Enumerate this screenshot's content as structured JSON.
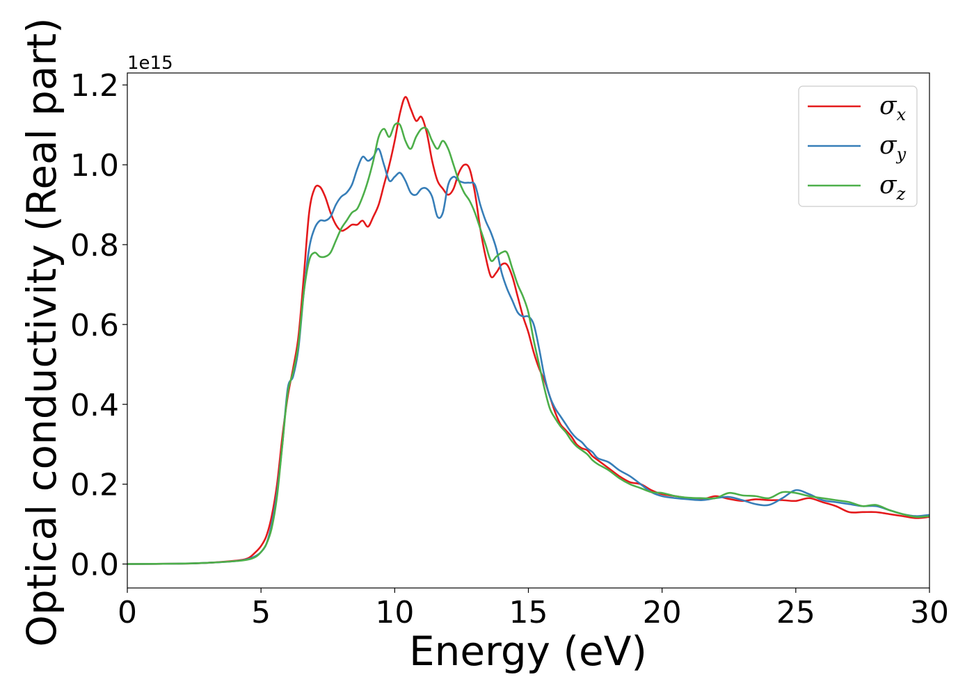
{
  "chart_data": {
    "type": "line",
    "xlabel": "Energy (eV)",
    "ylabel": "Optical conductivity (Real part)",
    "y_offset_label": "1e15",
    "xlim": [
      0,
      30
    ],
    "ylim": [
      -0.06,
      1.23
    ],
    "x_ticks": [
      0,
      5,
      10,
      15,
      20,
      25,
      30
    ],
    "x_tick_labels": [
      "0",
      "5",
      "10",
      "15",
      "20",
      "25",
      "30"
    ],
    "y_ticks": [
      0.0,
      0.2,
      0.4,
      0.6,
      0.8,
      1.0,
      1.2
    ],
    "y_tick_labels": [
      "0.0",
      "0.2",
      "0.4",
      "0.6",
      "0.8",
      "1.0",
      "1.2"
    ],
    "grid": false,
    "legend_position": "top-right",
    "series": [
      {
        "name": "σ",
        "subscript": "x",
        "color": "#e41a1c",
        "points": [
          [
            0,
            0
          ],
          [
            2,
            0.001
          ],
          [
            3,
            0.003
          ],
          [
            4,
            0.008
          ],
          [
            4.5,
            0.014
          ],
          [
            4.8,
            0.03
          ],
          [
            5,
            0.045
          ],
          [
            5.2,
            0.07
          ],
          [
            5.4,
            0.12
          ],
          [
            5.6,
            0.2
          ],
          [
            5.8,
            0.32
          ],
          [
            6,
            0.42
          ],
          [
            6.2,
            0.49
          ],
          [
            6.4,
            0.57
          ],
          [
            6.6,
            0.72
          ],
          [
            6.8,
            0.88
          ],
          [
            7,
            0.94
          ],
          [
            7.2,
            0.945
          ],
          [
            7.4,
            0.92
          ],
          [
            7.6,
            0.88
          ],
          [
            7.8,
            0.85
          ],
          [
            8,
            0.835
          ],
          [
            8.2,
            0.84
          ],
          [
            8.4,
            0.85
          ],
          [
            8.6,
            0.85
          ],
          [
            8.8,
            0.86
          ],
          [
            9,
            0.845
          ],
          [
            9.2,
            0.87
          ],
          [
            9.4,
            0.9
          ],
          [
            9.6,
            0.95
          ],
          [
            9.8,
            1.0
          ],
          [
            10,
            1.06
          ],
          [
            10.2,
            1.13
          ],
          [
            10.4,
            1.17
          ],
          [
            10.6,
            1.14
          ],
          [
            10.8,
            1.11
          ],
          [
            11,
            1.12
          ],
          [
            11.2,
            1.08
          ],
          [
            11.4,
            1.01
          ],
          [
            11.6,
            0.96
          ],
          [
            11.8,
            0.94
          ],
          [
            12,
            0.925
          ],
          [
            12.2,
            0.94
          ],
          [
            12.4,
            0.98
          ],
          [
            12.6,
            1.0
          ],
          [
            12.8,
            0.99
          ],
          [
            13,
            0.93
          ],
          [
            13.2,
            0.84
          ],
          [
            13.4,
            0.77
          ],
          [
            13.6,
            0.72
          ],
          [
            13.8,
            0.73
          ],
          [
            14,
            0.75
          ],
          [
            14.2,
            0.75
          ],
          [
            14.4,
            0.72
          ],
          [
            14.6,
            0.67
          ],
          [
            14.8,
            0.62
          ],
          [
            15,
            0.58
          ],
          [
            15.2,
            0.53
          ],
          [
            15.4,
            0.49
          ],
          [
            15.6,
            0.46
          ],
          [
            15.8,
            0.42
          ],
          [
            16,
            0.38
          ],
          [
            16.2,
            0.35
          ],
          [
            16.4,
            0.335
          ],
          [
            16.6,
            0.32
          ],
          [
            16.8,
            0.3
          ],
          [
            17,
            0.29
          ],
          [
            17.2,
            0.285
          ],
          [
            17.4,
            0.27
          ],
          [
            17.6,
            0.26
          ],
          [
            18,
            0.24
          ],
          [
            18.4,
            0.22
          ],
          [
            18.8,
            0.205
          ],
          [
            19.2,
            0.2
          ],
          [
            19.6,
            0.185
          ],
          [
            20,
            0.175
          ],
          [
            20.5,
            0.17
          ],
          [
            21,
            0.165
          ],
          [
            21.5,
            0.162
          ],
          [
            22,
            0.17
          ],
          [
            22.5,
            0.163
          ],
          [
            23,
            0.158
          ],
          [
            23.5,
            0.162
          ],
          [
            24,
            0.16
          ],
          [
            24.5,
            0.16
          ],
          [
            25,
            0.158
          ],
          [
            25.5,
            0.165
          ],
          [
            26,
            0.155
          ],
          [
            26.5,
            0.145
          ],
          [
            27,
            0.13
          ],
          [
            27.5,
            0.13
          ],
          [
            28,
            0.13
          ],
          [
            28.5,
            0.125
          ],
          [
            29,
            0.12
          ],
          [
            29.5,
            0.115
          ],
          [
            30,
            0.118
          ]
        ]
      },
      {
        "name": "σ",
        "subscript": "y",
        "color": "#377eb8",
        "points": [
          [
            0,
            0
          ],
          [
            2,
            0.001
          ],
          [
            3,
            0.003
          ],
          [
            4,
            0.007
          ],
          [
            4.5,
            0.012
          ],
          [
            4.8,
            0.02
          ],
          [
            5,
            0.03
          ],
          [
            5.2,
            0.05
          ],
          [
            5.4,
            0.1
          ],
          [
            5.6,
            0.18
          ],
          [
            5.8,
            0.3
          ],
          [
            6,
            0.44
          ],
          [
            6.2,
            0.47
          ],
          [
            6.4,
            0.54
          ],
          [
            6.6,
            0.68
          ],
          [
            6.8,
            0.79
          ],
          [
            7,
            0.84
          ],
          [
            7.2,
            0.86
          ],
          [
            7.4,
            0.86
          ],
          [
            7.6,
            0.87
          ],
          [
            7.8,
            0.9
          ],
          [
            8,
            0.92
          ],
          [
            8.2,
            0.93
          ],
          [
            8.4,
            0.95
          ],
          [
            8.6,
            0.99
          ],
          [
            8.8,
            1.02
          ],
          [
            9,
            1.01
          ],
          [
            9.2,
            1.02
          ],
          [
            9.4,
            1.04
          ],
          [
            9.6,
            1.0
          ],
          [
            9.8,
            0.96
          ],
          [
            10,
            0.97
          ],
          [
            10.2,
            0.98
          ],
          [
            10.4,
            0.96
          ],
          [
            10.6,
            0.93
          ],
          [
            10.8,
            0.925
          ],
          [
            11,
            0.94
          ],
          [
            11.2,
            0.94
          ],
          [
            11.4,
            0.92
          ],
          [
            11.6,
            0.87
          ],
          [
            11.8,
            0.88
          ],
          [
            12,
            0.95
          ],
          [
            12.2,
            0.97
          ],
          [
            12.4,
            0.96
          ],
          [
            12.6,
            0.955
          ],
          [
            12.8,
            0.955
          ],
          [
            13,
            0.95
          ],
          [
            13.2,
            0.9
          ],
          [
            13.4,
            0.86
          ],
          [
            13.6,
            0.83
          ],
          [
            13.8,
            0.79
          ],
          [
            14,
            0.73
          ],
          [
            14.2,
            0.69
          ],
          [
            14.4,
            0.66
          ],
          [
            14.6,
            0.63
          ],
          [
            14.8,
            0.62
          ],
          [
            15,
            0.62
          ],
          [
            15.2,
            0.6
          ],
          [
            15.4,
            0.54
          ],
          [
            15.6,
            0.47
          ],
          [
            15.8,
            0.42
          ],
          [
            16,
            0.39
          ],
          [
            16.2,
            0.37
          ],
          [
            16.4,
            0.35
          ],
          [
            16.6,
            0.33
          ],
          [
            16.8,
            0.315
          ],
          [
            17,
            0.305
          ],
          [
            17.2,
            0.29
          ],
          [
            17.4,
            0.28
          ],
          [
            17.6,
            0.265
          ],
          [
            18,
            0.255
          ],
          [
            18.4,
            0.235
          ],
          [
            18.8,
            0.22
          ],
          [
            19.2,
            0.2
          ],
          [
            19.6,
            0.18
          ],
          [
            20,
            0.17
          ],
          [
            20.5,
            0.165
          ],
          [
            21,
            0.162
          ],
          [
            21.5,
            0.16
          ],
          [
            22,
            0.165
          ],
          [
            22.5,
            0.168
          ],
          [
            23,
            0.16
          ],
          [
            23.5,
            0.15
          ],
          [
            24,
            0.148
          ],
          [
            24.5,
            0.165
          ],
          [
            25,
            0.185
          ],
          [
            25.5,
            0.175
          ],
          [
            26,
            0.16
          ],
          [
            26.5,
            0.155
          ],
          [
            27,
            0.15
          ],
          [
            27.5,
            0.145
          ],
          [
            28,
            0.145
          ],
          [
            28.5,
            0.135
          ],
          [
            29,
            0.125
          ],
          [
            29.5,
            0.12
          ],
          [
            30,
            0.123
          ]
        ]
      },
      {
        "name": "σ",
        "subscript": "z",
        "color": "#4daf4a",
        "points": [
          [
            0,
            0
          ],
          [
            2,
            0.001
          ],
          [
            3,
            0.003
          ],
          [
            4,
            0.007
          ],
          [
            4.5,
            0.011
          ],
          [
            4.8,
            0.018
          ],
          [
            5,
            0.03
          ],
          [
            5.2,
            0.05
          ],
          [
            5.4,
            0.09
          ],
          [
            5.6,
            0.17
          ],
          [
            5.8,
            0.3
          ],
          [
            6,
            0.43
          ],
          [
            6.2,
            0.48
          ],
          [
            6.4,
            0.55
          ],
          [
            6.6,
            0.68
          ],
          [
            6.8,
            0.76
          ],
          [
            7,
            0.78
          ],
          [
            7.2,
            0.77
          ],
          [
            7.4,
            0.77
          ],
          [
            7.6,
            0.78
          ],
          [
            7.8,
            0.81
          ],
          [
            8,
            0.84
          ],
          [
            8.2,
            0.86
          ],
          [
            8.4,
            0.88
          ],
          [
            8.6,
            0.89
          ],
          [
            8.8,
            0.92
          ],
          [
            9,
            0.96
          ],
          [
            9.2,
            1.01
          ],
          [
            9.4,
            1.07
          ],
          [
            9.6,
            1.09
          ],
          [
            9.8,
            1.07
          ],
          [
            10,
            1.1
          ],
          [
            10.2,
            1.1
          ],
          [
            10.4,
            1.06
          ],
          [
            10.6,
            1.04
          ],
          [
            10.8,
            1.07
          ],
          [
            11,
            1.09
          ],
          [
            11.2,
            1.09
          ],
          [
            11.4,
            1.06
          ],
          [
            11.6,
            1.04
          ],
          [
            11.8,
            1.06
          ],
          [
            12,
            1.04
          ],
          [
            12.2,
            1.0
          ],
          [
            12.4,
            0.96
          ],
          [
            12.6,
            0.93
          ],
          [
            12.8,
            0.91
          ],
          [
            13,
            0.88
          ],
          [
            13.2,
            0.84
          ],
          [
            13.4,
            0.8
          ],
          [
            13.6,
            0.76
          ],
          [
            13.8,
            0.77
          ],
          [
            14,
            0.78
          ],
          [
            14.2,
            0.78
          ],
          [
            14.4,
            0.74
          ],
          [
            14.6,
            0.7
          ],
          [
            14.8,
            0.67
          ],
          [
            15,
            0.63
          ],
          [
            15.2,
            0.56
          ],
          [
            15.4,
            0.5
          ],
          [
            15.6,
            0.44
          ],
          [
            15.8,
            0.39
          ],
          [
            16,
            0.365
          ],
          [
            16.2,
            0.345
          ],
          [
            16.4,
            0.33
          ],
          [
            16.6,
            0.31
          ],
          [
            16.8,
            0.295
          ],
          [
            17,
            0.285
          ],
          [
            17.2,
            0.275
          ],
          [
            17.4,
            0.26
          ],
          [
            17.6,
            0.25
          ],
          [
            18,
            0.235
          ],
          [
            18.4,
            0.215
          ],
          [
            18.8,
            0.2
          ],
          [
            19.2,
            0.19
          ],
          [
            19.6,
            0.18
          ],
          [
            20,
            0.178
          ],
          [
            20.5,
            0.17
          ],
          [
            21,
            0.166
          ],
          [
            21.5,
            0.165
          ],
          [
            22,
            0.165
          ],
          [
            22.5,
            0.178
          ],
          [
            23,
            0.172
          ],
          [
            23.5,
            0.17
          ],
          [
            24,
            0.165
          ],
          [
            24.5,
            0.18
          ],
          [
            25,
            0.178
          ],
          [
            25.5,
            0.17
          ],
          [
            26,
            0.165
          ],
          [
            26.5,
            0.16
          ],
          [
            27,
            0.155
          ],
          [
            27.5,
            0.145
          ],
          [
            28,
            0.148
          ],
          [
            28.5,
            0.135
          ],
          [
            29,
            0.125
          ],
          [
            29.5,
            0.118
          ],
          [
            30,
            0.12
          ]
        ]
      }
    ]
  }
}
